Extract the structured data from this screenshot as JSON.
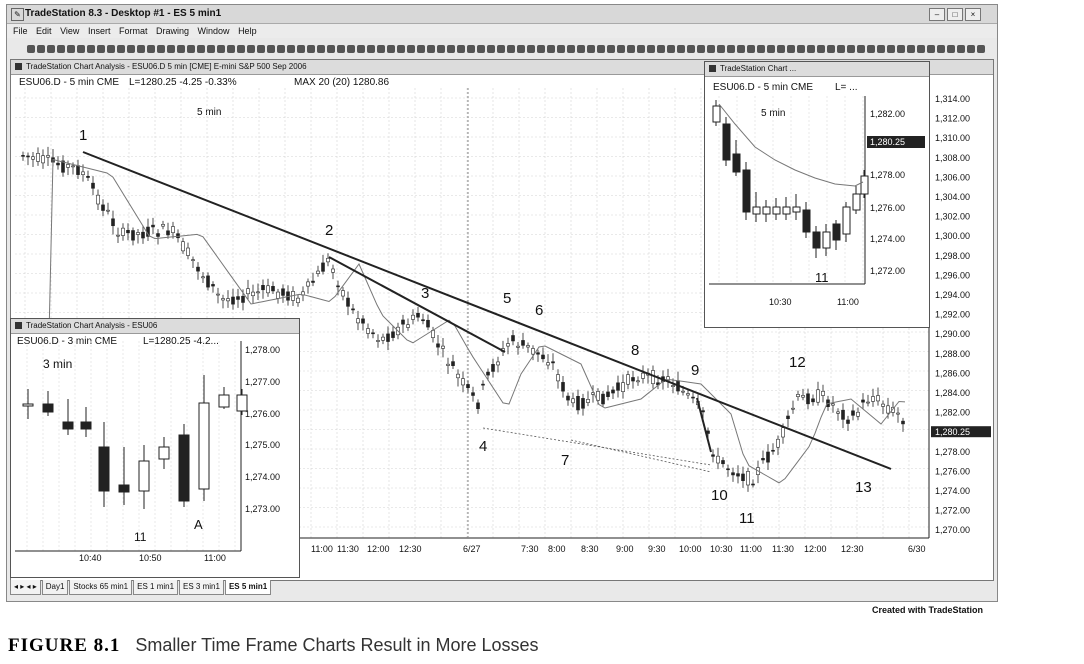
{
  "window": {
    "title": "TradeStation 8.3 - Desktop #1 - ES 5 min1"
  },
  "menu": [
    "File",
    "Edit",
    "View",
    "Insert",
    "Format",
    "Drawing",
    "Window",
    "Help"
  ],
  "main_chart": {
    "header": "TradeStation Chart Analysis - ESU06.D 5 min [CME] E-mini S&P 500 Sep 2006",
    "symbol_line": "ESU06.D - 5 min CME",
    "last_line": "L=1280.25  -4.25  -0.33%",
    "ma_line": "MAX 20 (20)  1280.86",
    "timeframe_label": "5 min",
    "price_axis": [
      "1,314.00",
      "1,312.00",
      "1,310.00",
      "1,308.00",
      "1,306.00",
      "1,304.00",
      "1,302.00",
      "1,300.00",
      "1,298.00",
      "1,296.00",
      "1,294.00",
      "1,292.00",
      "1,290.00",
      "1,288.00",
      "1,286.00",
      "1,284.00",
      "1,282.00",
      "1,280.25",
      "1,278.00",
      "1,276.00",
      "1,274.00",
      "1,272.00",
      "1,270.00"
    ],
    "price_highlight": "1,280.25",
    "time_axis": [
      "11:00",
      "11:30",
      "12:00",
      "12:30",
      "6/27",
      "7:30",
      "8:00",
      "8:30",
      "9:00",
      "9:30",
      "10:00",
      "10:30",
      "11:00",
      "11:30",
      "12:00",
      "12:30",
      "6/30"
    ],
    "bar_labels": [
      "1",
      "2",
      "3",
      "4",
      "5",
      "6",
      "7",
      "8",
      "9",
      "10",
      "11",
      "12",
      "13"
    ]
  },
  "inset_3min": {
    "header": "TradeStation Chart Analysis - ESU06",
    "symbol_line": "ESU06.D - 3 min CME",
    "last_line": "L=1280.25  -4.2...",
    "timeframe_label": "3 min",
    "price_axis": [
      "1,278.00",
      "1,277.00",
      "1,276.00",
      "1,275.00",
      "1,274.00",
      "1,273.00"
    ],
    "time_axis": [
      "10:40",
      "10:50",
      "11:00"
    ],
    "bar_labels": [
      "11",
      "A"
    ]
  },
  "inset_1min": {
    "header": "TradeStation Chart ...",
    "symbol_line": "ESU06.D - 5 min CME",
    "last_line": "L= ...",
    "timeframe_label": "5 min",
    "price_axis": [
      "1,282.00",
      "1,280.25",
      "1,278.00",
      "1,276.00",
      "1,274.00",
      "1,272.00"
    ],
    "price_highlight": "1,280.25",
    "time_axis": [
      "10:30",
      "11:00"
    ],
    "bar_labels": [
      "11"
    ]
  },
  "tabs": [
    "Day1",
    "Stocks 65 min1",
    "ES 1 min1",
    "ES 3 min1",
    "ES 5 min1"
  ],
  "credit": "Created with TradeStation",
  "caption": {
    "figure": "FIGURE 8.1",
    "text": "Smaller Time Frame Charts Result in More Losses"
  }
}
